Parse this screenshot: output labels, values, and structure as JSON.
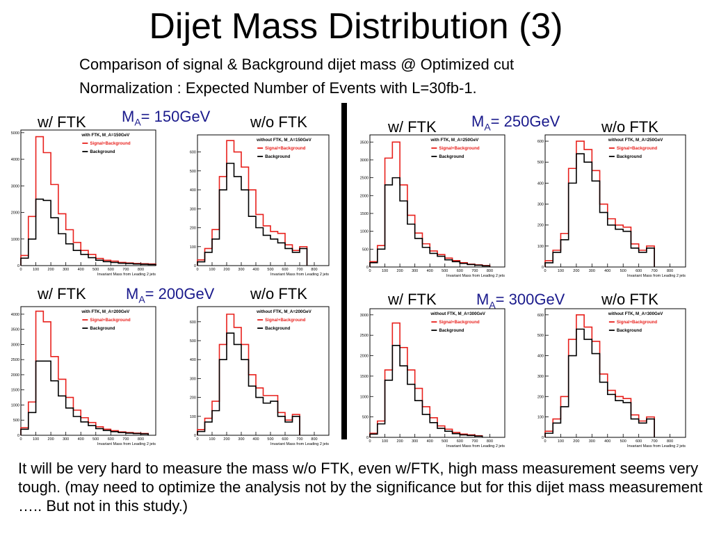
{
  "slide": {
    "title": "Dijet Mass Distribution (3)",
    "subtitle_line1": "Comparison of signal & Background dijet mass @ Optimized cut",
    "subtitle_line2": "Normalization : Expected Number of Events with L=30fb-1.",
    "note": "It will be very hard to measure the mass w/o FTK, even w/FTK, high mass measurement seems very tough. (may need to optimize the analysis not by the significance but for this dijet mass measurement ….. But not in this study.)"
  },
  "labels": {
    "with_ftk": "w/ FTK",
    "without_ftk": "w/o FTK",
    "ma_prefix": "M",
    "ma_sub": "A",
    "ma150": "= 150GeV",
    "ma250": "= 250GeV",
    "ma200": "= 200GeV",
    "ma300": "= 300GeV"
  },
  "colors": {
    "signal": "#e8201c",
    "background": "#000000",
    "ma_text": "#1a1a8c"
  },
  "chart_data": [
    {
      "type": "histogram",
      "title": "with FTK, M_A=150GeV",
      "xlabel": "Invariant Mass from Leading 2 jets",
      "xlim": [
        0,
        900
      ],
      "ylim": [
        0,
        5100
      ],
      "yticks": [
        0,
        1000,
        2000,
        3000,
        4000,
        5000
      ],
      "xticks": [
        0,
        100,
        200,
        300,
        400,
        500,
        600,
        700,
        800
      ],
      "legend": [
        {
          "name": "Signal+Background",
          "color": "#e8201c"
        },
        {
          "name": "Background",
          "color": "#000000"
        }
      ],
      "bin_width": 50,
      "bin_edges_start": 0,
      "series": [
        {
          "name": "Signal+Background",
          "values": [
            380,
            1850,
            4850,
            4250,
            3050,
            1950,
            1350,
            870,
            570,
            420,
            270,
            200,
            170,
            120,
            100,
            80,
            70,
            60
          ]
        },
        {
          "name": "Background",
          "values": [
            280,
            1000,
            2500,
            2450,
            1800,
            1200,
            820,
            570,
            420,
            300,
            200,
            150,
            120,
            90,
            80,
            60,
            50,
            40
          ]
        }
      ]
    },
    {
      "type": "histogram",
      "title": "without FTK, M_A=150GeV",
      "xlabel": "Invariant Mass from Leading 2 jets",
      "xlim": [
        0,
        900
      ],
      "ylim": [
        0,
        690
      ],
      "yticks": [
        0,
        100,
        200,
        300,
        400,
        500,
        600
      ],
      "xticks": [
        0,
        100,
        200,
        300,
        400,
        500,
        600,
        700,
        800
      ],
      "legend": [
        {
          "name": "Signal+Background",
          "color": "#e8201c"
        },
        {
          "name": "Background",
          "color": "#000000"
        }
      ],
      "bin_width": 50,
      "bin_edges_start": 0,
      "series": [
        {
          "name": "Signal+Background",
          "values": [
            30,
            90,
            190,
            470,
            660,
            600,
            520,
            400,
            270,
            210,
            180,
            170,
            110,
            80,
            100
          ]
        },
        {
          "name": "Background",
          "values": [
            20,
            70,
            140,
            400,
            540,
            470,
            400,
            260,
            200,
            160,
            140,
            120,
            90,
            70,
            90
          ]
        }
      ]
    },
    {
      "type": "histogram",
      "title": "with FTK, M_A=250GeV",
      "xlabel": "Invariant Mass from Leading 2 jets",
      "xlim": [
        0,
        900
      ],
      "ylim": [
        0,
        3700
      ],
      "yticks": [
        0,
        500,
        1000,
        1500,
        2000,
        2500,
        3000,
        3500
      ],
      "xticks": [
        0,
        100,
        200,
        300,
        400,
        500,
        600,
        700,
        800
      ],
      "legend": [
        {
          "name": "Signal+Background",
          "color": "#e8201c"
        },
        {
          "name": "Background",
          "color": "#000000"
        }
      ],
      "bin_width": 50,
      "bin_edges_start": 0,
      "series": [
        {
          "name": "Signal+Background",
          "values": [
            150,
            600,
            3050,
            3500,
            2300,
            1450,
            950,
            650,
            450,
            350,
            250,
            180,
            120,
            80,
            60,
            40
          ]
        },
        {
          "name": "Background",
          "values": [
            120,
            500,
            2300,
            2500,
            1850,
            1200,
            800,
            550,
            380,
            300,
            200,
            150,
            100,
            70,
            50,
            30
          ]
        }
      ]
    },
    {
      "type": "histogram",
      "title": "without FTK, M_A=250GeV",
      "xlabel": "Invariant Mass from Leading 2 jets",
      "xlim": [
        0,
        900
      ],
      "ylim": [
        0,
        630
      ],
      "yticks": [
        0,
        100,
        200,
        300,
        400,
        500,
        600
      ],
      "xticks": [
        0,
        100,
        200,
        300,
        400,
        500,
        600,
        700,
        800
      ],
      "legend": [
        {
          "name": "Signal+Background",
          "color": "#e8201c"
        },
        {
          "name": "Background",
          "color": "#000000"
        }
      ],
      "bin_width": 50,
      "bin_edges_start": 0,
      "series": [
        {
          "name": "Signal+Background",
          "values": [
            30,
            80,
            160,
            470,
            600,
            560,
            460,
            300,
            230,
            200,
            190,
            110,
            80,
            100
          ]
        },
        {
          "name": "Background",
          "values": [
            20,
            70,
            130,
            400,
            540,
            500,
            410,
            260,
            200,
            180,
            170,
            90,
            70,
            90
          ]
        }
      ]
    },
    {
      "type": "histogram",
      "title": "with FTK, M_A=200GeV",
      "xlabel": "Invariant Mass from Leading 2 jets",
      "xlim": [
        0,
        900
      ],
      "ylim": [
        0,
        4250
      ],
      "yticks": [
        0,
        500,
        1000,
        1500,
        2000,
        2500,
        3000,
        3500,
        4000
      ],
      "xticks": [
        0,
        100,
        200,
        300,
        400,
        500,
        600,
        700,
        800
      ],
      "legend": [
        {
          "name": "Signal+Background",
          "color": "#e8201c"
        },
        {
          "name": "Background",
          "color": "#000000"
        }
      ],
      "bin_width": 50,
      "bin_edges_start": 0,
      "series": [
        {
          "name": "Signal+Background",
          "values": [
            250,
            1100,
            4100,
            3750,
            2600,
            1850,
            1250,
            830,
            580,
            420,
            280,
            200,
            150,
            110,
            90,
            70,
            60
          ]
        },
        {
          "name": "Background",
          "values": [
            200,
            750,
            2450,
            2450,
            1800,
            1300,
            900,
            620,
            440,
            320,
            220,
            160,
            120,
            90,
            70,
            55,
            45
          ]
        }
      ]
    },
    {
      "type": "histogram",
      "title": "without FTK, M_A=200GeV",
      "xlabel": "Invariant Mass from Leading 2 jets",
      "xlim": [
        0,
        900
      ],
      "ylim": [
        0,
        680
      ],
      "yticks": [
        0,
        100,
        200,
        300,
        400,
        500,
        600
      ],
      "xticks": [
        0,
        100,
        200,
        300,
        400,
        500,
        600,
        700,
        800
      ],
      "legend": [
        {
          "name": "Signal+Background",
          "color": "#e8201c"
        },
        {
          "name": "Background",
          "color": "#000000"
        }
      ],
      "bin_width": 50,
      "bin_edges_start": 0,
      "series": [
        {
          "name": "Signal+Background",
          "values": [
            30,
            90,
            180,
            480,
            640,
            570,
            480,
            320,
            250,
            210,
            210,
            120,
            80,
            110
          ]
        },
        {
          "name": "Background",
          "values": [
            20,
            70,
            130,
            400,
            540,
            480,
            400,
            260,
            200,
            170,
            180,
            100,
            70,
            100
          ]
        }
      ]
    },
    {
      "type": "histogram",
      "title": "without FTK, M_A=300GeV",
      "xlabel": "Invariant Mass from Leading 2 jets",
      "xlim": [
        0,
        900
      ],
      "ylim": [
        0,
        3150
      ],
      "yticks": [
        0,
        500,
        1000,
        1500,
        2000,
        2500,
        3000
      ],
      "xticks": [
        0,
        100,
        200,
        300,
        400,
        500,
        600,
        700,
        800
      ],
      "legend": [
        {
          "name": "Signal+Background",
          "color": "#e8201c"
        },
        {
          "name": "Background",
          "color": "#000000"
        }
      ],
      "bin_width": 50,
      "bin_edges_start": 0,
      "series": [
        {
          "name": "Signal+Background",
          "values": [
            100,
            400,
            1650,
            2800,
            2200,
            1650,
            1200,
            750,
            480,
            280,
            200,
            120,
            80,
            60,
            40
          ]
        },
        {
          "name": "Background",
          "values": [
            80,
            330,
            1400,
            2250,
            1750,
            1300,
            900,
            560,
            360,
            220,
            150,
            90,
            60,
            45,
            30
          ]
        }
      ]
    },
    {
      "type": "histogram",
      "title": "without FTK, M_A=300GeV",
      "xlabel": "Invariant Mass from Leading 2 jets",
      "xlim": [
        0,
        900
      ],
      "ylim": [
        0,
        630
      ],
      "yticks": [
        0,
        100,
        200,
        300,
        400,
        500,
        600
      ],
      "xticks": [
        0,
        100,
        200,
        300,
        400,
        500,
        600,
        700,
        800
      ],
      "legend": [
        {
          "name": "Signal+Background",
          "color": "#e8201c"
        },
        {
          "name": "Background",
          "color": "#000000"
        }
      ],
      "bin_width": 50,
      "bin_edges_start": 0,
      "series": [
        {
          "name": "Signal+Background",
          "values": [
            30,
            90,
            200,
            480,
            600,
            540,
            470,
            310,
            230,
            200,
            190,
            110,
            80,
            100
          ]
        },
        {
          "name": "Background",
          "values": [
            20,
            70,
            150,
            400,
            530,
            480,
            410,
            270,
            210,
            180,
            170,
            90,
            70,
            90
          ]
        }
      ]
    }
  ]
}
